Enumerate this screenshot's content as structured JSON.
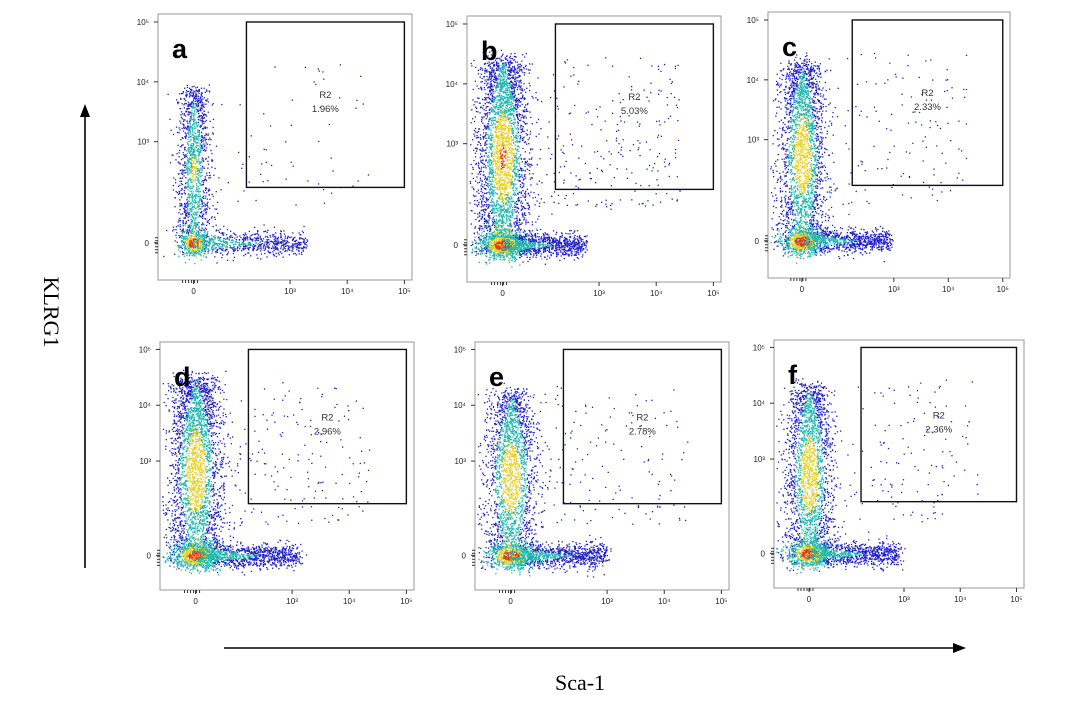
{
  "axes": {
    "x_title": "Sca-1",
    "y_title": "KLRG1"
  },
  "colors": {
    "density_low": "#2020c8",
    "density_mid": "#1fb8b0",
    "density_high": "#e8d020",
    "density_peak": "#e83010"
  },
  "chart_data": [
    {
      "type": "scatter",
      "panel": "a",
      "xlabel": "Sca-1",
      "ylabel": "KLRG1",
      "x_scale": "biexponential",
      "y_scale": "biexponential",
      "x_ticks": [
        "0",
        "10³",
        "10⁴",
        "10⁵"
      ],
      "y_ticks": [
        "0",
        "10³",
        "10⁴",
        "10⁵"
      ],
      "gate": {
        "name": "R2",
        "percent": "1.96%",
        "x_range": [
          300,
          100000
        ],
        "y_range": [
          300,
          100000
        ]
      }
    },
    {
      "type": "scatter",
      "panel": "b",
      "xlabel": "Sca-1",
      "ylabel": "KLRG1",
      "x_scale": "biexponential",
      "y_scale": "biexponential",
      "x_ticks": [
        "0",
        "10³",
        "10⁴",
        "10⁵"
      ],
      "y_ticks": [
        "0",
        "10³",
        "10⁴",
        "10⁵"
      ],
      "gate": {
        "name": "R2",
        "percent": "5.03%",
        "x_range": [
          300,
          100000
        ],
        "y_range": [
          300,
          100000
        ]
      }
    },
    {
      "type": "scatter",
      "panel": "c",
      "xlabel": "Sca-1",
      "ylabel": "KLRG1",
      "x_scale": "biexponential",
      "y_scale": "biexponential",
      "x_ticks": [
        "0",
        "10³",
        "10⁴",
        "10⁵"
      ],
      "y_ticks": [
        "0",
        "10³",
        "10⁴",
        "10⁵"
      ],
      "gate": {
        "name": "R2",
        "percent": "2.33%",
        "x_range": [
          300,
          100000
        ],
        "y_range": [
          300,
          100000
        ]
      }
    },
    {
      "type": "scatter",
      "panel": "d",
      "xlabel": "Sca-1",
      "ylabel": "KLRG1",
      "x_scale": "biexponential",
      "y_scale": "biexponential",
      "x_ticks": [
        "0",
        "10³",
        "10⁴",
        "10⁵"
      ],
      "y_ticks": [
        "0",
        "10³",
        "10⁴",
        "10⁵"
      ],
      "gate": {
        "name": "R2",
        "percent": "2.96%",
        "x_range": [
          300,
          100000
        ],
        "y_range": [
          300,
          100000
        ]
      }
    },
    {
      "type": "scatter",
      "panel": "e",
      "xlabel": "Sca-1",
      "ylabel": "KLRG1",
      "x_scale": "biexponential",
      "y_scale": "biexponential",
      "x_ticks": [
        "0",
        "10³",
        "10⁴",
        "10⁵"
      ],
      "y_ticks": [
        "0",
        "10³",
        "10⁴",
        "10⁵"
      ],
      "gate": {
        "name": "R2",
        "percent": "2.78%",
        "x_range": [
          300,
          100000
        ],
        "y_range": [
          300,
          100000
        ]
      }
    },
    {
      "type": "scatter",
      "panel": "f",
      "xlabel": "Sca-1",
      "ylabel": "KLRG1",
      "x_scale": "biexponential",
      "y_scale": "biexponential",
      "x_ticks": [
        "0",
        "10³",
        "10⁴",
        "10⁵"
      ],
      "y_ticks": [
        "0",
        "10³",
        "10⁴",
        "10⁵"
      ],
      "gate": {
        "name": "R2",
        "percent": "2.36%",
        "x_range": [
          300,
          100000
        ],
        "y_range": [
          300,
          100000
        ]
      }
    }
  ]
}
